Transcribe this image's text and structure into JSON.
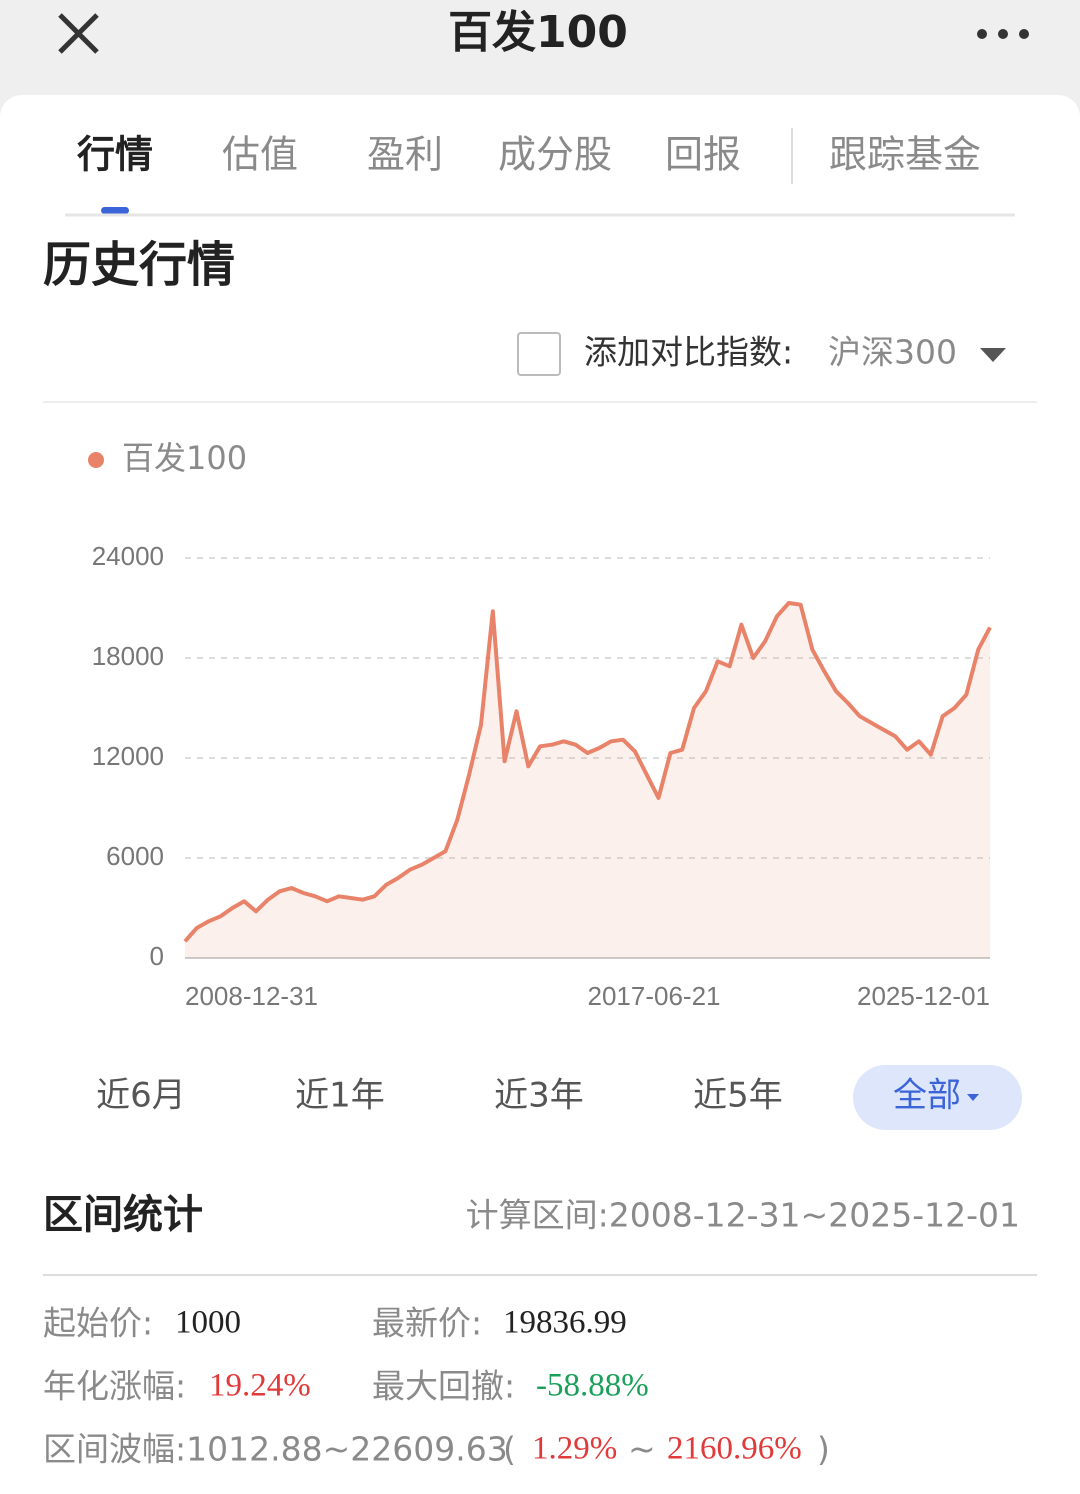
{
  "header": {
    "title": "百发100"
  },
  "tabs": {
    "items": [
      "行情",
      "估值",
      "盈利",
      "成分股",
      "回报",
      "跟踪基金"
    ],
    "active": 0
  },
  "section_title": "历史行情",
  "compare": {
    "label": "添加对比指数:",
    "index": "沪深300"
  },
  "chart_data": {
    "type": "line",
    "categories": [
      "2008-12-31",
      null,
      null,
      null,
      null,
      null,
      null,
      null,
      null,
      null,
      null,
      null,
      null,
      null,
      null,
      null,
      null,
      null,
      null,
      null,
      null,
      null,
      null,
      null,
      null,
      null,
      null,
      null,
      null,
      null,
      null,
      null,
      null,
      null,
      "2017-06-21",
      null,
      null,
      null,
      null,
      null,
      null,
      null,
      null,
      null,
      null,
      null,
      null,
      null,
      null,
      null,
      null,
      null,
      null,
      null,
      null,
      null,
      null,
      null,
      null,
      null,
      null,
      null,
      null,
      null,
      null,
      null,
      null,
      null,
      "2025-12-01"
    ],
    "series": [
      {
        "name": "百发100",
        "color": "#e8836a",
        "values": [
          1000,
          1800,
          2200,
          2500,
          3000,
          3400,
          2800,
          3500,
          4000,
          4200,
          3900,
          3700,
          3400,
          3700,
          3600,
          3500,
          3700,
          4400,
          4800,
          5300,
          5600,
          6000,
          6400,
          8300,
          11000,
          14000,
          20800,
          11800,
          14800,
          11500,
          12700,
          12800,
          13000,
          12800,
          12300,
          12600,
          13000,
          13100,
          12400,
          11000,
          9600,
          12300,
          12500,
          15000,
          16000,
          17800,
          17500,
          20000,
          18000,
          19000,
          20500,
          21300,
          21200,
          18500,
          17200,
          16000,
          15300,
          14500,
          14100,
          13700,
          13300,
          12500,
          13000,
          12200,
          14500,
          15000,
          15800,
          18500,
          19836.99
        ]
      }
    ],
    "ylim": [
      0,
      24000
    ],
    "yticks": [
      0,
      6000,
      12000,
      18000,
      24000
    ],
    "grid": true,
    "area": true
  },
  "ranges": {
    "items": [
      "近6月",
      "近1年",
      "近3年",
      "近5年",
      "全部"
    ],
    "active": 4
  },
  "stats": {
    "title": "区间统计",
    "period": "计算区间:2008-12-31~2025-12-01",
    "start": {
      "label": "起始价:",
      "value": "1000"
    },
    "latest": {
      "label": "最新价:",
      "value": "19836.99"
    },
    "annual": {
      "label": "年化涨幅:",
      "value": "19.24%"
    },
    "drawdown": {
      "label": "最大回撤:",
      "value": "-58.88%"
    },
    "swing": {
      "label": "区间波幅:1012.88~22609.63",
      "open": "(",
      "low": "1.29%",
      "sep": "~",
      "high": "2160.96%",
      "close": ")"
    }
  }
}
